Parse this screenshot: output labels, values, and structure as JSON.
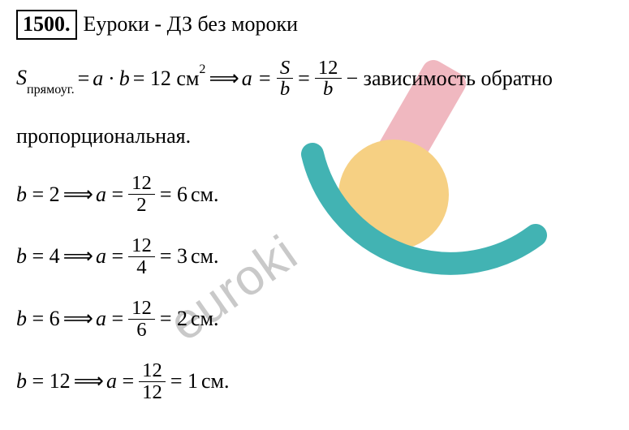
{
  "title": {
    "number": "1500.",
    "text": "Еуроки - ДЗ без мороки"
  },
  "lines": {
    "line1_pre": "S",
    "line1_sub": "прямоуг.",
    "line1_eq1": " = ",
    "line1_ab": "a · b",
    "line1_eq2": " = 12 см",
    "line1_sup": "2",
    "line1_arr": " ⟹ ",
    "line1_a_eq": "a = ",
    "line1_frac1_num": "S",
    "line1_frac1_den": "b",
    "line1_eq3": " = ",
    "line1_frac2_num": "12",
    "line1_frac2_den": "b",
    "line1_tail": " − зависимость обратно",
    "line2": "пропорциональная.",
    "calc": [
      {
        "b": "2",
        "num": "12",
        "den": "2",
        "res": "6",
        "res_suffix": "  см."
      },
      {
        "b": "4",
        "num": "12",
        "den": "4",
        "res": "3",
        "res_suffix": " см."
      },
      {
        "b": "6",
        "num": "12",
        "den": "6",
        "res": "2",
        "res_suffix": " см."
      },
      {
        "b": "12",
        "num": "12",
        "den": "12",
        "res": "1",
        "res_suffix": " см."
      }
    ]
  },
  "watermark": {
    "text": "euroki",
    "swoosh_stroke": "#42b3b3",
    "dot_fill": "#f6d083",
    "slash_fill": "#f0b8c0"
  },
  "colors": {
    "text": "#000000",
    "background": "#ffffff",
    "border": "#000000"
  }
}
